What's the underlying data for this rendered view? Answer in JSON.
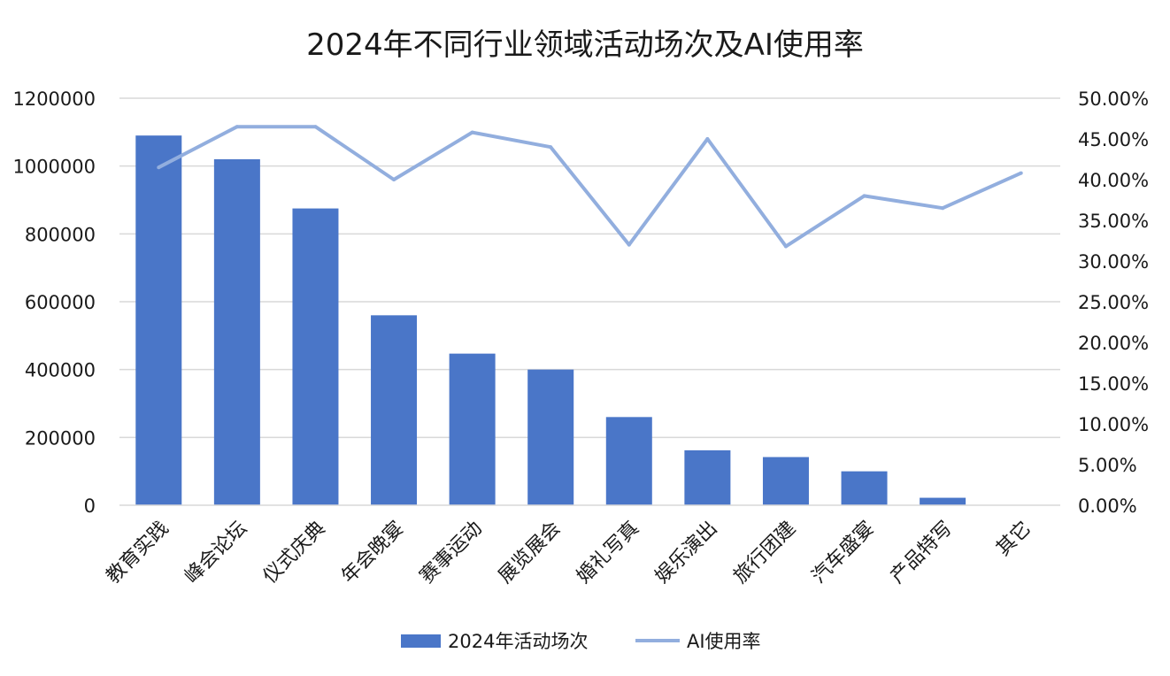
{
  "chart_data": {
    "type": "bar+line",
    "title": "2024年不同行业领域活动场次及AI使用率",
    "categories": [
      "教育实践",
      "峰会论坛",
      "仪式庆典",
      "年会晚宴",
      "赛事运动",
      "展览展会",
      "婚礼写真",
      "娱乐演出",
      "旅行团建",
      "汽车盛宴",
      "产品特写",
      "其它"
    ],
    "series": [
      {
        "name": "2024年活动场次",
        "type": "bar",
        "axis": "left",
        "color": "#4a76c8",
        "values": [
          1090000,
          1020000,
          875000,
          560000,
          447000,
          400000,
          260000,
          162000,
          142000,
          100000,
          22000,
          0
        ]
      },
      {
        "name": "AI使用率",
        "type": "line",
        "axis": "right",
        "color": "#92aede",
        "values": [
          0.415,
          0.465,
          0.465,
          0.4,
          0.458,
          0.44,
          0.32,
          0.45,
          0.318,
          0.38,
          0.365,
          0.408
        ]
      }
    ],
    "y_left": {
      "min": 0,
      "max": 1200000,
      "ticks": [
        "0",
        "200000",
        "400000",
        "600000",
        "800000",
        "1000000",
        "1200000"
      ]
    },
    "y_right": {
      "min": 0,
      "max": 0.5,
      "ticks": [
        "0.00%",
        "5.00%",
        "10.00%",
        "15.00%",
        "20.00%",
        "25.00%",
        "30.00%",
        "35.00%",
        "40.00%",
        "45.00%",
        "50.00%"
      ]
    },
    "grid": true,
    "legend": "bottom"
  }
}
